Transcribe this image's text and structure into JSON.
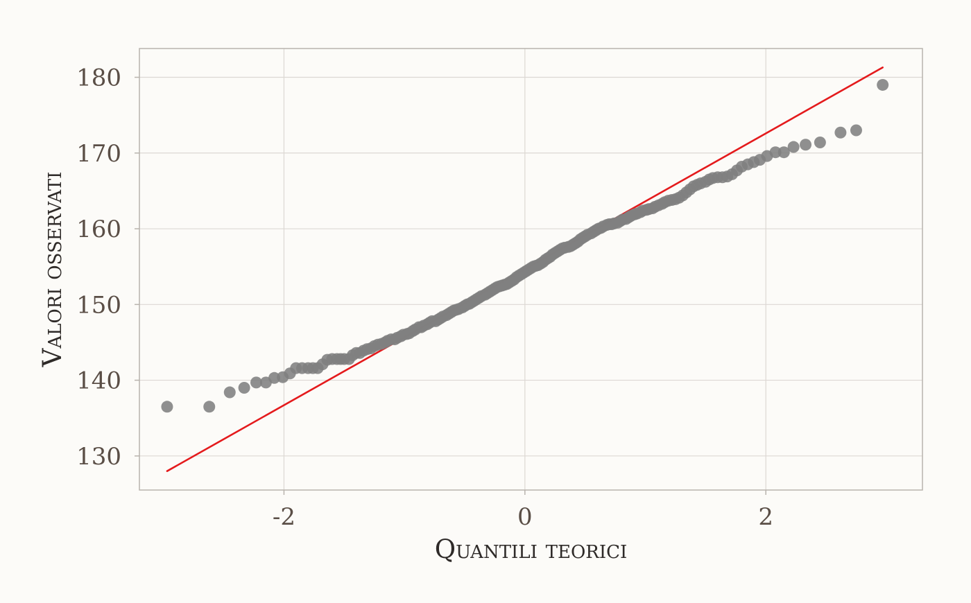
{
  "chart_data": {
    "type": "scatter",
    "title": "",
    "xlabel": "Quantili teorici",
    "ylabel": "Valori osservati",
    "xlim": [
      -3.2,
      3.3
    ],
    "ylim": [
      125.5,
      183.8
    ],
    "x_ticks": [
      -2,
      0,
      2
    ],
    "x_tick_labels": [
      "-2",
      "0",
      "2"
    ],
    "y_ticks": [
      130,
      140,
      150,
      160,
      170,
      180
    ],
    "y_tick_labels": [
      "130",
      "140",
      "150",
      "160",
      "170",
      "180"
    ],
    "grid": true,
    "legend": "none",
    "reference_line": {
      "x": [
        -2.97,
        2.97
      ],
      "y": [
        128.0,
        181.3
      ],
      "color": "#e41a1c"
    },
    "points_color": "#7f7f7f",
    "points": [
      [
        -2.97,
        136.5
      ],
      [
        -2.62,
        136.5
      ],
      [
        -2.45,
        138.4
      ],
      [
        -2.33,
        139.0
      ],
      [
        -2.23,
        139.7
      ],
      [
        -2.15,
        139.7
      ],
      [
        -2.08,
        140.3
      ],
      [
        -2.01,
        140.4
      ],
      [
        -1.95,
        140.9
      ],
      [
        -1.9,
        141.6
      ],
      [
        -1.85,
        141.6
      ],
      [
        -1.8,
        141.6
      ],
      [
        -1.76,
        141.6
      ],
      [
        -1.72,
        141.6
      ],
      [
        -1.68,
        142.1
      ],
      [
        -1.64,
        142.7
      ],
      [
        -1.6,
        142.8
      ],
      [
        -1.56,
        142.8
      ],
      [
        -1.53,
        142.8
      ],
      [
        -1.5,
        142.8
      ],
      [
        -1.46,
        142.8
      ],
      [
        -1.43,
        143.3
      ],
      [
        -1.4,
        143.6
      ],
      [
        -1.37,
        143.6
      ],
      [
        -1.34,
        143.9
      ],
      [
        -1.31,
        144.1
      ],
      [
        -1.28,
        144.2
      ],
      [
        -1.25,
        144.5
      ],
      [
        -1.22,
        144.7
      ],
      [
        -1.19,
        144.8
      ],
      [
        -1.16,
        145.0
      ],
      [
        -1.14,
        145.2
      ],
      [
        -1.11,
        145.4
      ],
      [
        -1.08,
        145.4
      ],
      [
        -1.06,
        145.6
      ],
      [
        -1.03,
        145.8
      ],
      [
        -1.01,
        146.0
      ],
      [
        -0.98,
        146.1
      ],
      [
        -0.96,
        146.2
      ],
      [
        -0.93,
        146.5
      ],
      [
        -0.91,
        146.7
      ],
      [
        -0.88,
        147.0
      ],
      [
        -0.86,
        147.0
      ],
      [
        -0.84,
        147.2
      ],
      [
        -0.81,
        147.4
      ],
      [
        -0.79,
        147.6
      ],
      [
        -0.77,
        147.8
      ],
      [
        -0.74,
        147.8
      ],
      [
        -0.72,
        148.0
      ],
      [
        -0.7,
        148.2
      ],
      [
        -0.68,
        148.4
      ],
      [
        -0.65,
        148.6
      ],
      [
        -0.63,
        148.8
      ],
      [
        -0.61,
        149.0
      ],
      [
        -0.59,
        149.2
      ],
      [
        -0.57,
        149.3
      ],
      [
        -0.55,
        149.4
      ],
      [
        -0.52,
        149.6
      ],
      [
        -0.5,
        149.8
      ],
      [
        -0.48,
        150.0
      ],
      [
        -0.46,
        150.1
      ],
      [
        -0.44,
        150.3
      ],
      [
        -0.42,
        150.5
      ],
      [
        -0.4,
        150.7
      ],
      [
        -0.38,
        150.9
      ],
      [
        -0.36,
        151.1
      ],
      [
        -0.33,
        151.3
      ],
      [
        -0.31,
        151.5
      ],
      [
        -0.29,
        151.7
      ],
      [
        -0.27,
        151.9
      ],
      [
        -0.25,
        152.1
      ],
      [
        -0.23,
        152.3
      ],
      [
        -0.21,
        152.4
      ],
      [
        -0.19,
        152.5
      ],
      [
        -0.17,
        152.6
      ],
      [
        -0.15,
        152.7
      ],
      [
        -0.13,
        152.9
      ],
      [
        -0.11,
        153.1
      ],
      [
        -0.09,
        153.3
      ],
      [
        -0.07,
        153.6
      ],
      [
        -0.05,
        153.8
      ],
      [
        -0.03,
        154.0
      ],
      [
        -0.01,
        154.2
      ],
      [
        0.01,
        154.4
      ],
      [
        0.03,
        154.6
      ],
      [
        0.05,
        154.8
      ],
      [
        0.07,
        155.0
      ],
      [
        0.09,
        155.1
      ],
      [
        0.11,
        155.2
      ],
      [
        0.13,
        155.4
      ],
      [
        0.15,
        155.6
      ],
      [
        0.17,
        155.9
      ],
      [
        0.19,
        156.1
      ],
      [
        0.21,
        156.3
      ],
      [
        0.23,
        156.6
      ],
      [
        0.25,
        156.8
      ],
      [
        0.27,
        157.0
      ],
      [
        0.29,
        157.2
      ],
      [
        0.31,
        157.4
      ],
      [
        0.33,
        157.5
      ],
      [
        0.36,
        157.6
      ],
      [
        0.38,
        157.7
      ],
      [
        0.4,
        157.9
      ],
      [
        0.42,
        158.1
      ],
      [
        0.44,
        158.3
      ],
      [
        0.46,
        158.6
      ],
      [
        0.48,
        158.8
      ],
      [
        0.5,
        159.0
      ],
      [
        0.52,
        159.2
      ],
      [
        0.55,
        159.4
      ],
      [
        0.57,
        159.6
      ],
      [
        0.59,
        159.8
      ],
      [
        0.61,
        160.0
      ],
      [
        0.63,
        160.1
      ],
      [
        0.65,
        160.3
      ],
      [
        0.68,
        160.5
      ],
      [
        0.7,
        160.6
      ],
      [
        0.72,
        160.6
      ],
      [
        0.74,
        160.7
      ],
      [
        0.77,
        160.8
      ],
      [
        0.79,
        161.0
      ],
      [
        0.81,
        161.2
      ],
      [
        0.84,
        161.3
      ],
      [
        0.86,
        161.5
      ],
      [
        0.88,
        161.7
      ],
      [
        0.91,
        161.9
      ],
      [
        0.93,
        162.0
      ],
      [
        0.96,
        162.2
      ],
      [
        0.98,
        162.4
      ],
      [
        1.01,
        162.5
      ],
      [
        1.03,
        162.6
      ],
      [
        1.06,
        162.7
      ],
      [
        1.08,
        162.9
      ],
      [
        1.11,
        163.1
      ],
      [
        1.14,
        163.3
      ],
      [
        1.16,
        163.5
      ],
      [
        1.19,
        163.7
      ],
      [
        1.22,
        163.8
      ],
      [
        1.25,
        163.9
      ],
      [
        1.28,
        164.1
      ],
      [
        1.31,
        164.4
      ],
      [
        1.34,
        164.8
      ],
      [
        1.37,
        165.2
      ],
      [
        1.4,
        165.6
      ],
      [
        1.43,
        165.8
      ],
      [
        1.46,
        166.0
      ],
      [
        1.5,
        166.2
      ],
      [
        1.53,
        166.5
      ],
      [
        1.56,
        166.7
      ],
      [
        1.6,
        166.8
      ],
      [
        1.64,
        166.8
      ],
      [
        1.68,
        166.9
      ],
      [
        1.72,
        167.2
      ],
      [
        1.76,
        167.7
      ],
      [
        1.8,
        168.2
      ],
      [
        1.85,
        168.5
      ],
      [
        1.9,
        168.8
      ],
      [
        1.95,
        169.1
      ],
      [
        2.01,
        169.6
      ],
      [
        2.08,
        170.1
      ],
      [
        2.15,
        170.1
      ],
      [
        2.23,
        170.8
      ],
      [
        2.33,
        171.1
      ],
      [
        2.45,
        171.4
      ],
      [
        2.62,
        172.7
      ],
      [
        2.75,
        173.0
      ],
      [
        2.97,
        179.0
      ]
    ]
  }
}
